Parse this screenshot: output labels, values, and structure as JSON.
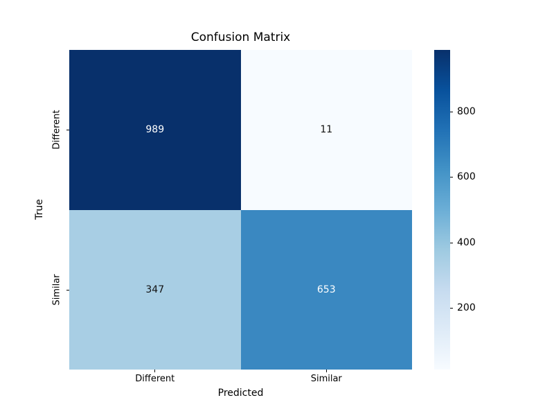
{
  "title": "Confusion Matrix",
  "axes": {
    "x_label": "Predicted",
    "y_label": "True",
    "x_tick_labels": [
      "Different",
      "Similar"
    ],
    "y_tick_labels": [
      "Different",
      "Similar"
    ]
  },
  "cells": [
    {
      "row": "Different",
      "col": "Different",
      "value": "989",
      "bg": "#08306b",
      "fg": "#ffffff"
    },
    {
      "row": "Different",
      "col": "Similar",
      "value": "11",
      "bg": "#f7fbff",
      "fg": "#111111"
    },
    {
      "row": "Similar",
      "col": "Different",
      "value": "347",
      "bg": "#a8cee4",
      "fg": "#111111"
    },
    {
      "row": "Similar",
      "col": "Similar",
      "value": "653",
      "bg": "#3a88c1",
      "fg": "#ffffff"
    }
  ],
  "colorbar": {
    "min": 11,
    "max": 989,
    "tick_values": [
      800,
      600,
      400,
      200
    ],
    "gradient_bottom_to_top": [
      "#f7fbff",
      "#deebf7",
      "#c6dbef",
      "#9ecae1",
      "#6baed6",
      "#4292c6",
      "#2171b5",
      "#08519c",
      "#08306b"
    ]
  },
  "chart_data": {
    "type": "heatmap",
    "title": "Confusion Matrix",
    "xlabel": "Predicted",
    "ylabel": "True",
    "x_categories": [
      "Different",
      "Similar"
    ],
    "y_categories": [
      "Different",
      "Similar"
    ],
    "values": [
      [
        989,
        11
      ],
      [
        347,
        653
      ]
    ],
    "annotations": [
      [
        "989",
        "11"
      ],
      [
        "347",
        "653"
      ]
    ],
    "colormap": "Blues",
    "vmin": 11,
    "vmax": 989,
    "colorbar_ticks": [
      200,
      400,
      600,
      800
    ],
    "colorbar_position": "right",
    "grid": false
  }
}
